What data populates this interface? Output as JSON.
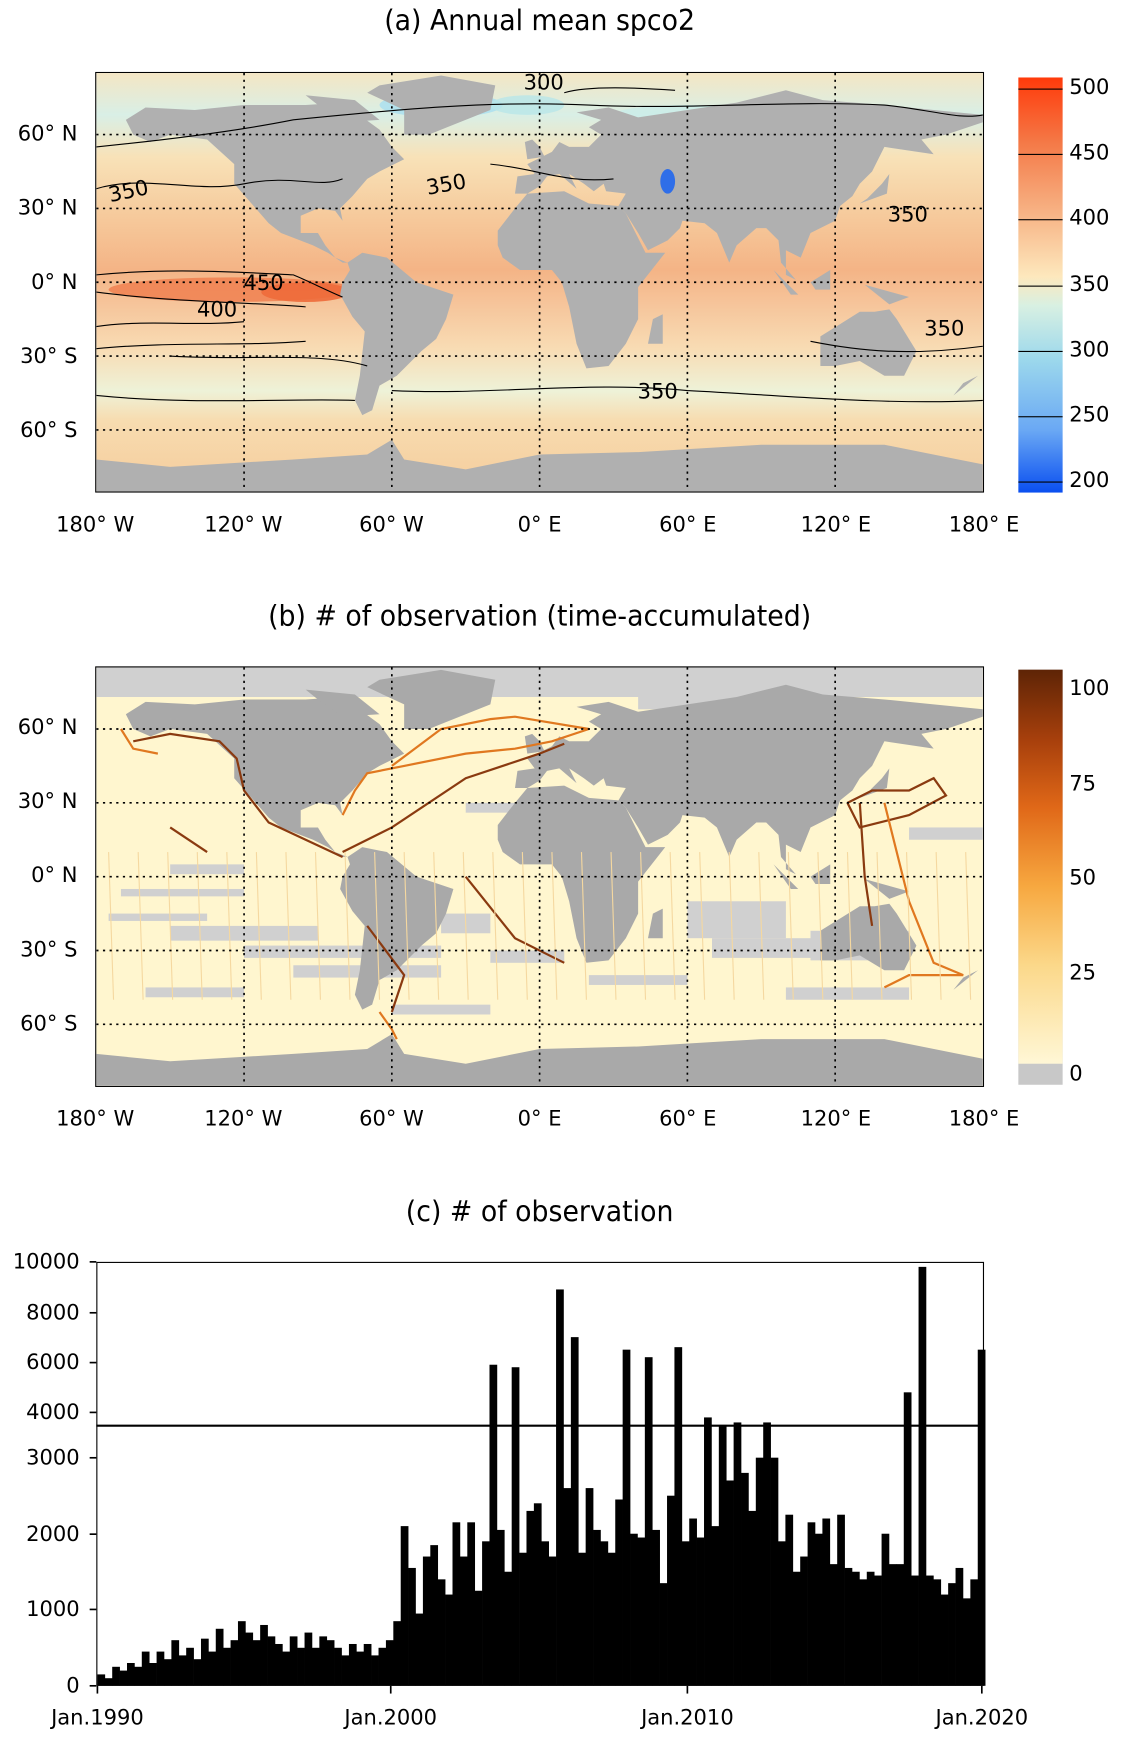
{
  "lat_labels": [
    "60° N",
    "30° N",
    "0° N",
    "30° S",
    "60° S"
  ],
  "lon_labels": [
    "180° W",
    "120° W",
    "60° W",
    "0° E",
    "60° E",
    "120° E",
    "180° E"
  ],
  "panel_a": {
    "title": "(a) Annual mean spco2",
    "colorbar_ticks": [
      "500",
      "450",
      "400",
      "350",
      "300",
      "250",
      "200"
    ],
    "contour_labels": [
      "300",
      "350",
      "350",
      "350",
      "450",
      "400",
      "350",
      "350"
    ],
    "colors": {
      "land": "#b0b0b0",
      "high": "#ff3b10",
      "mid": "#fdf0c0",
      "low": "#1060f0"
    }
  },
  "panel_b": {
    "title": "(b) # of observation (time-accumulated)",
    "colorbar_ticks": [
      "100",
      "75",
      "50",
      "25",
      "0"
    ],
    "colors": {
      "land": "#a9a9a9",
      "nodata": "#d0d0d0",
      "high": "#6b2a08",
      "low": "#fff6cf"
    }
  },
  "chart_data": {
    "type": "bar",
    "title": "(c) # of observation",
    "xlabel": "",
    "ylabel": "",
    "x_tick_labels": [
      "Jan.1990",
      "Jan.2000",
      "Jan.2010",
      "Jan.2020"
    ],
    "y_tick_labels": [
      "10000",
      "8000",
      "6000",
      "4000",
      "3000",
      "2000",
      "1000",
      "0"
    ],
    "ylim": [
      0,
      10000
    ],
    "axis_break": 3450,
    "x_start": 1990,
    "x_end": 2020,
    "step": "quarter",
    "values": [
      150,
      100,
      250,
      200,
      300,
      250,
      450,
      300,
      450,
      350,
      600,
      400,
      500,
      350,
      620,
      450,
      750,
      500,
      600,
      850,
      700,
      600,
      800,
      650,
      550,
      450,
      650,
      500,
      700,
      500,
      650,
      600,
      500,
      400,
      550,
      450,
      550,
      400,
      500,
      600,
      850,
      2100,
      1550,
      950,
      1700,
      1850,
      1400,
      1200,
      2150,
      1700,
      2150,
      1250,
      1900,
      5900,
      2050,
      1500,
      5800,
      1750,
      2300,
      2400,
      1900,
      1700,
      8900,
      2600,
      7000,
      1750,
      2600,
      2050,
      1900,
      1750,
      2450,
      6500,
      2000,
      1950,
      6200,
      2050,
      1350,
      2500,
      6600,
      1900,
      2200,
      1950,
      3800,
      2100,
      3500,
      2700,
      3600,
      2800,
      2300,
      3000,
      3600,
      3000,
      1900,
      2250,
      1500,
      1700,
      2150,
      2000,
      2200,
      1600,
      2250,
      1550,
      1500,
      1400,
      1500,
      1450,
      2000,
      1600,
      1600,
      4800,
      1450,
      9800,
      1450,
      1400,
      1200,
      1350,
      1550,
      1150,
      1400,
      6500
    ]
  }
}
